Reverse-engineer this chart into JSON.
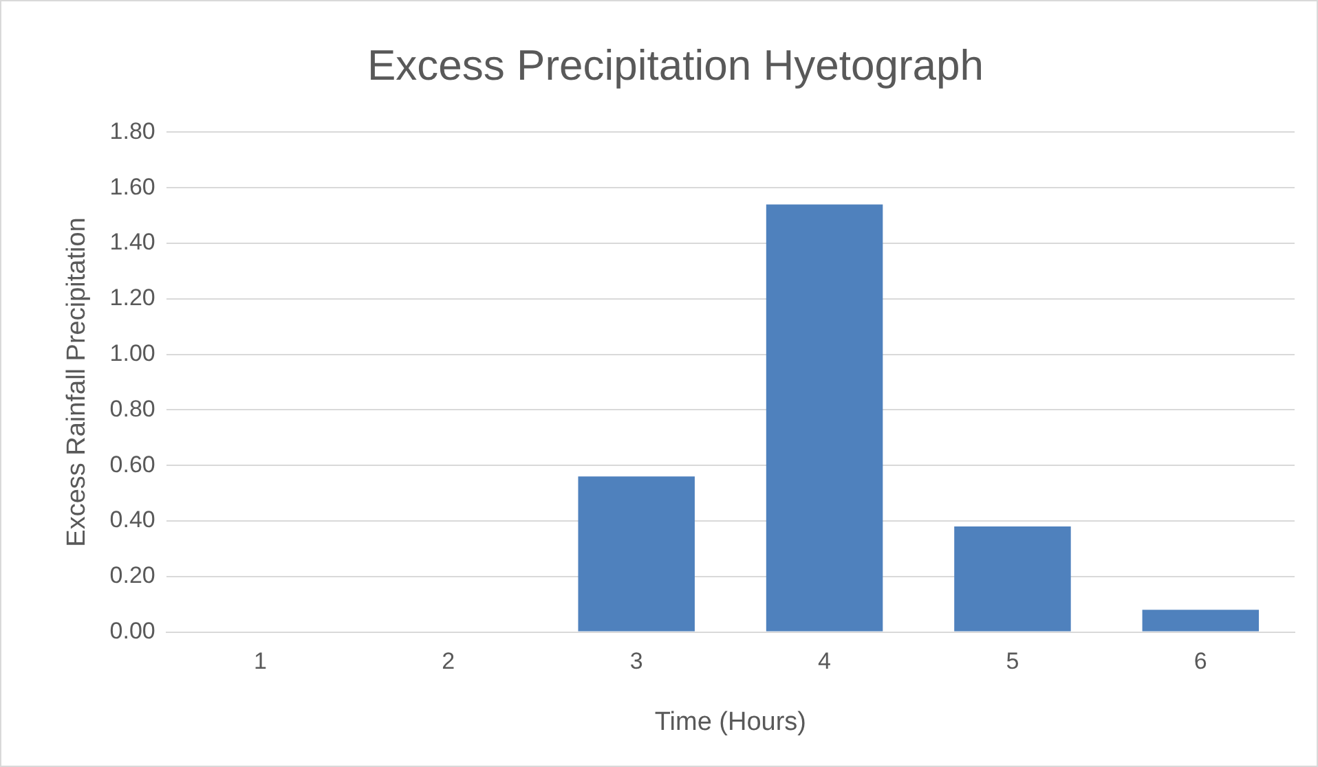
{
  "chart_data": {
    "type": "bar",
    "title": "Excess Precipitation Hyetograph",
    "xlabel": "Time (Hours)",
    "ylabel": "Excess Rainfall Precipitation",
    "categories": [
      "1",
      "2",
      "3",
      "4",
      "5",
      "6"
    ],
    "values": [
      0,
      0,
      0.56,
      1.54,
      0.38,
      0.08
    ],
    "color": "#4f81bd",
    "ylim": [
      0,
      1.8
    ],
    "yticks": [
      {
        "value": 0,
        "label": "0.00"
      },
      {
        "value": 0.2,
        "label": "0.20"
      },
      {
        "value": 0.4,
        "label": "0.40"
      },
      {
        "value": 0.6,
        "label": "0.60"
      },
      {
        "value": 0.8,
        "label": "0.80"
      },
      {
        "value": 1,
        "label": "1.00"
      },
      {
        "value": 1.2,
        "label": "1.20"
      },
      {
        "value": 1.4,
        "label": "1.40"
      },
      {
        "value": 1.6,
        "label": "1.60"
      },
      {
        "value": 1.8,
        "label": "1.80"
      }
    ],
    "grid": "y"
  }
}
